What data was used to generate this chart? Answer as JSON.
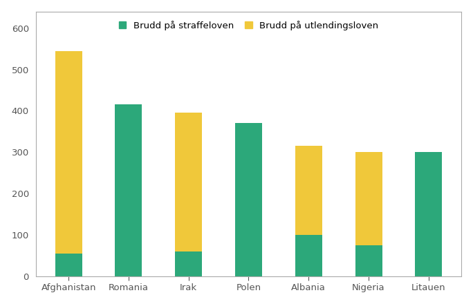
{
  "categories": [
    "Afghanistan",
    "Romania",
    "Irak",
    "Polen",
    "Albania",
    "Nigeria",
    "Litauen"
  ],
  "straffeloven": [
    55,
    415,
    60,
    370,
    100,
    75,
    300
  ],
  "utlendingsloven": [
    490,
    0,
    335,
    0,
    215,
    225,
    0
  ],
  "color_straffeloven": "#2ca87a",
  "color_utlendingsloven": "#f0c83a",
  "legend_straffeloven": "Brudd på straffeloven",
  "legend_utlendingsloven": "Brudd på utlendingsloven",
  "ylim": [
    0,
    640
  ],
  "yticks": [
    0,
    100,
    200,
    300,
    400,
    500,
    600
  ],
  "background_color": "#ffffff",
  "bar_width": 0.45,
  "spine_color": "#aaaaaa",
  "tick_color": "#555555",
  "fontsize": 9.5
}
